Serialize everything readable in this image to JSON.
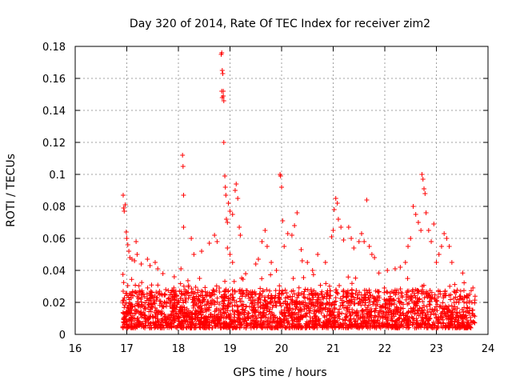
{
  "chart_data": {
    "type": "scatter",
    "title": "Day 320 of 2014, Rate Of TEC Index for receiver zim2",
    "xlabel": "GPS time / hours",
    "ylabel": "ROTI / TECUs",
    "xlim": [
      16,
      24
    ],
    "ylim": [
      0,
      0.18
    ],
    "xticks": [
      16,
      17,
      18,
      19,
      20,
      21,
      22,
      23,
      24
    ],
    "xtick_labels": [
      "16",
      "17",
      "18",
      "19",
      "20",
      "21",
      "22",
      "23",
      "24"
    ],
    "yticks": [
      0,
      0.02,
      0.04,
      0.06,
      0.08,
      0.1,
      0.12,
      0.14,
      0.16,
      0.18
    ],
    "ytick_labels": [
      "0",
      "0.02",
      "0.04",
      "0.06",
      "0.08",
      "0.1",
      "0.12",
      "0.14",
      "0.16",
      "0.18"
    ],
    "grid": true,
    "marker": "+",
    "color": "#ff0000",
    "x_range_observed": [
      16.92,
      23.75
    ],
    "series": [
      {
        "name": "zim2 ROTI",
        "points": [
          [
            16.93,
            0.087
          ],
          [
            16.94,
            0.079
          ],
          [
            16.95,
            0.077
          ],
          [
            16.97,
            0.081
          ],
          [
            16.99,
            0.064
          ],
          [
            17.0,
            0.06
          ],
          [
            17.02,
            0.056
          ],
          [
            17.04,
            0.052
          ],
          [
            17.06,
            0.048
          ],
          [
            17.1,
            0.047
          ],
          [
            17.15,
            0.046
          ],
          [
            17.18,
            0.058
          ],
          [
            17.2,
            0.05
          ],
          [
            17.28,
            0.044
          ],
          [
            17.4,
            0.047
          ],
          [
            17.45,
            0.043
          ],
          [
            17.55,
            0.045
          ],
          [
            17.6,
            0.041
          ],
          [
            17.7,
            0.038
          ],
          [
            17.92,
            0.036
          ],
          [
            18.05,
            0.041
          ],
          [
            18.08,
            0.112
          ],
          [
            18.09,
            0.105
          ],
          [
            18.1,
            0.087
          ],
          [
            18.1,
            0.067
          ],
          [
            18.25,
            0.06
          ],
          [
            18.3,
            0.05
          ],
          [
            18.45,
            0.052
          ],
          [
            18.6,
            0.057
          ],
          [
            18.7,
            0.062
          ],
          [
            18.75,
            0.058
          ],
          [
            18.83,
            0.175
          ],
          [
            18.84,
            0.176
          ],
          [
            18.85,
            0.165
          ],
          [
            18.86,
            0.163
          ],
          [
            18.84,
            0.152
          ],
          [
            18.85,
            0.148
          ],
          [
            18.87,
            0.149
          ],
          [
            18.88,
            0.146
          ],
          [
            18.87,
            0.152
          ],
          [
            18.88,
            0.12
          ],
          [
            18.9,
            0.099
          ],
          [
            18.91,
            0.092
          ],
          [
            18.92,
            0.087
          ],
          [
            18.93,
            0.072
          ],
          [
            18.95,
            0.07
          ],
          [
            18.97,
            0.082
          ],
          [
            19.0,
            0.077
          ],
          [
            19.05,
            0.075
          ],
          [
            19.1,
            0.09
          ],
          [
            19.12,
            0.094
          ],
          [
            19.15,
            0.085
          ],
          [
            19.18,
            0.067
          ],
          [
            19.2,
            0.062
          ],
          [
            18.95,
            0.054
          ],
          [
            19.0,
            0.05
          ],
          [
            19.05,
            0.045
          ],
          [
            19.5,
            0.044
          ],
          [
            19.55,
            0.047
          ],
          [
            19.62,
            0.058
          ],
          [
            19.68,
            0.065
          ],
          [
            19.72,
            0.055
          ],
          [
            19.8,
            0.045
          ],
          [
            19.9,
            0.04
          ],
          [
            19.97,
            0.1
          ],
          [
            19.98,
            0.099
          ],
          [
            20.0,
            0.092
          ],
          [
            20.02,
            0.071
          ],
          [
            20.05,
            0.055
          ],
          [
            20.12,
            0.063
          ],
          [
            20.2,
            0.062
          ],
          [
            20.25,
            0.068
          ],
          [
            20.3,
            0.076
          ],
          [
            20.38,
            0.053
          ],
          [
            20.4,
            0.046
          ],
          [
            20.5,
            0.045
          ],
          [
            20.6,
            0.04
          ],
          [
            20.7,
            0.05
          ],
          [
            20.85,
            0.045
          ],
          [
            20.97,
            0.061
          ],
          [
            21.0,
            0.065
          ],
          [
            21.02,
            0.078
          ],
          [
            21.05,
            0.085
          ],
          [
            21.08,
            0.082
          ],
          [
            21.1,
            0.072
          ],
          [
            21.15,
            0.067
          ],
          [
            21.2,
            0.059
          ],
          [
            21.3,
            0.067
          ],
          [
            21.35,
            0.06
          ],
          [
            21.4,
            0.054
          ],
          [
            21.5,
            0.058
          ],
          [
            21.55,
            0.063
          ],
          [
            21.6,
            0.058
          ],
          [
            21.65,
            0.084
          ],
          [
            21.7,
            0.055
          ],
          [
            21.75,
            0.05
          ],
          [
            21.8,
            0.048
          ],
          [
            22.05,
            0.04
          ],
          [
            22.2,
            0.041
          ],
          [
            22.3,
            0.042
          ],
          [
            22.4,
            0.045
          ],
          [
            22.45,
            0.055
          ],
          [
            22.5,
            0.06
          ],
          [
            22.55,
            0.08
          ],
          [
            22.6,
            0.075
          ],
          [
            22.65,
            0.07
          ],
          [
            22.7,
            0.065
          ],
          [
            22.72,
            0.1
          ],
          [
            22.74,
            0.097
          ],
          [
            22.76,
            0.091
          ],
          [
            22.78,
            0.088
          ],
          [
            22.8,
            0.076
          ],
          [
            22.85,
            0.065
          ],
          [
            22.9,
            0.058
          ],
          [
            22.95,
            0.069
          ],
          [
            23.0,
            0.045
          ],
          [
            23.05,
            0.05
          ],
          [
            23.1,
            0.055
          ],
          [
            23.15,
            0.063
          ],
          [
            23.2,
            0.06
          ],
          [
            23.25,
            0.055
          ],
          [
            23.3,
            0.045
          ]
        ]
      }
    ]
  }
}
